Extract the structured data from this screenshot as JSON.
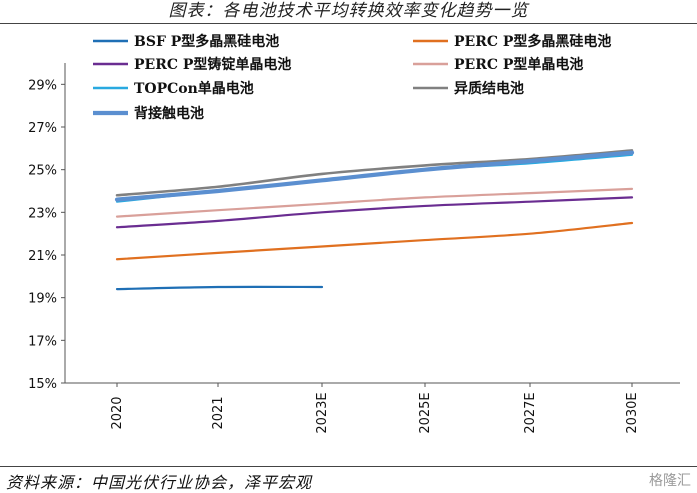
{
  "header": {
    "title": "图表：各电池技术平均转换效率变化趋势一览"
  },
  "footer": {
    "source": "资料来源：中国光伏行业协会，泽平宏观",
    "watermark": "格隆汇"
  },
  "chart_data": {
    "type": "line",
    "categories": [
      "2020",
      "2021",
      "2023E",
      "2025E",
      "2027E",
      "2030E"
    ],
    "ylim": [
      15,
      30
    ],
    "yticks": [
      "29%",
      "27%",
      "25%",
      "23%",
      "21%",
      "19%",
      "17%",
      "15%"
    ],
    "ytick_values": [
      29,
      27,
      25,
      23,
      21,
      19,
      17,
      15
    ],
    "series": [
      {
        "name": "BSF P型多晶黑硅电池",
        "color": "#1f6fb5",
        "width": 2.2,
        "values": [
          19.4,
          19.5,
          19.5,
          null,
          null,
          null
        ]
      },
      {
        "name": "PERC P型多晶黑硅电池",
        "color": "#e07020",
        "width": 2.2,
        "values": [
          20.8,
          21.1,
          21.4,
          21.7,
          22.0,
          22.5
        ]
      },
      {
        "name": "PERC P型铸锭单晶电池",
        "color": "#6a2d91",
        "width": 2.2,
        "values": [
          22.3,
          22.6,
          23.0,
          23.3,
          23.5,
          23.7
        ]
      },
      {
        "name": "PERC P型单晶电池",
        "color": "#d9a09a",
        "width": 2.2,
        "values": [
          22.8,
          23.1,
          23.4,
          23.7,
          23.9,
          24.1
        ]
      },
      {
        "name": "TOPCon单晶电池",
        "color": "#29a9e0",
        "width": 2.2,
        "values": [
          23.5,
          24.0,
          24.5,
          25.0,
          25.3,
          25.7
        ]
      },
      {
        "name": "异质结电池",
        "color": "#808080",
        "width": 2.6,
        "values": [
          23.8,
          24.2,
          24.8,
          25.2,
          25.5,
          25.9
        ]
      },
      {
        "name": "背接触电池",
        "color": "#5b8fd0",
        "width": 4.2,
        "values": [
          23.6,
          24.0,
          24.5,
          25.0,
          25.4,
          25.8
        ]
      }
    ],
    "grid": false,
    "legend": "top"
  }
}
